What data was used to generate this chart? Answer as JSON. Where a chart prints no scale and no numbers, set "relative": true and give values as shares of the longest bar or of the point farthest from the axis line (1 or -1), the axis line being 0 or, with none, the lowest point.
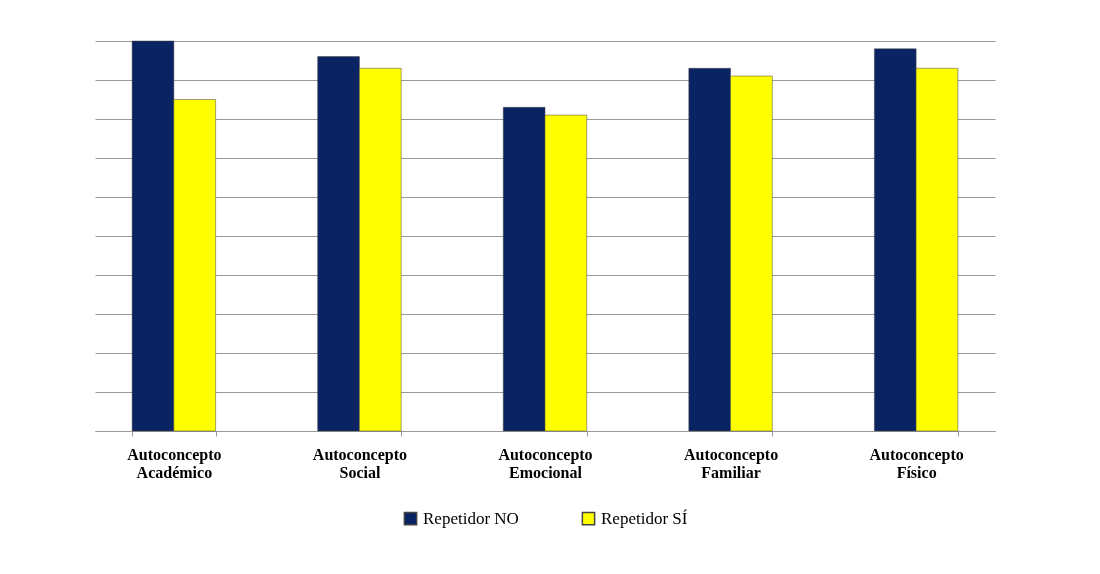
{
  "chart_data": {
    "type": "bar",
    "relative": true,
    "grid": "y",
    "legend": "bottom",
    "tick_labels": "x",
    "categories": [
      "Autoconcepto Académico",
      "Autoconcepto Social",
      "Autoconcepto Emocional",
      "Autoconcepto Familiar",
      "Autoconcepto Físico"
    ],
    "series": [
      {
        "name": "Repetidor NO",
        "color": "#0a2463",
        "values": [
          1,
          0.96,
          0.83,
          0.93,
          0.98
        ]
      },
      {
        "name": "Repetidor SÍ",
        "color": "#ffff00",
        "values": [
          0.85,
          0.93,
          0.81,
          0.91,
          0.93
        ]
      }
    ]
  }
}
